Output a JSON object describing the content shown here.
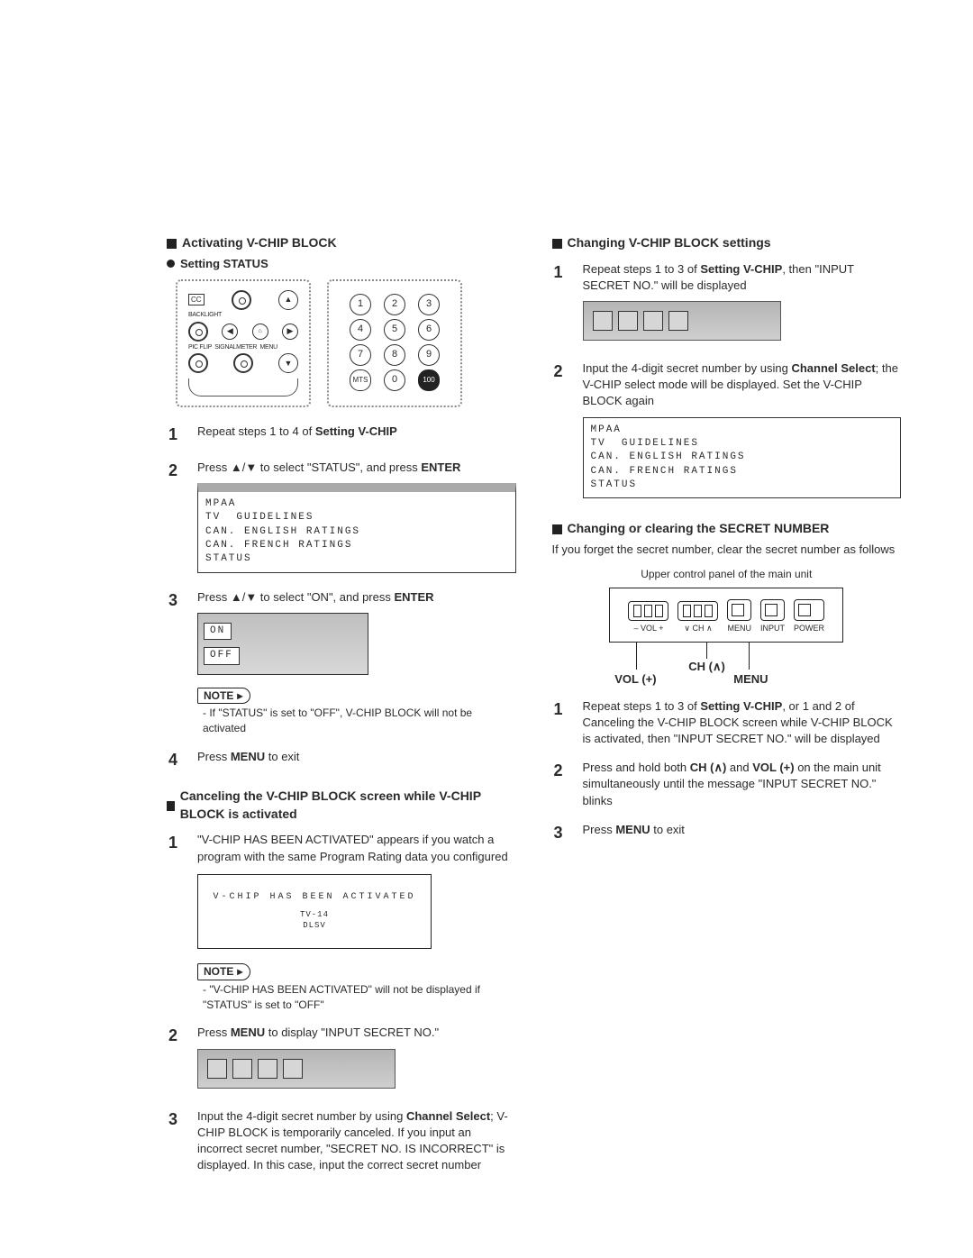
{
  "left": {
    "section_title": "Activating V-CHIP BLOCK",
    "sub_title": "Setting STATUS",
    "remote_labels": {
      "cc": "CC",
      "backlight": "BACKLIGHT",
      "picflip": "PIC FLIP",
      "signalmeter": "SIGNALMETER",
      "menu": "MENU"
    },
    "keypad": {
      "r1": [
        "1",
        "2",
        "3"
      ],
      "r2": [
        "4",
        "5",
        "6"
      ],
      "r3": [
        "7",
        "8",
        "9"
      ],
      "r4": [
        "MTS",
        "0",
        "100"
      ]
    },
    "step1": "Repeat steps 1 to 4 of Setting V-CHIP",
    "step2": "Press ▲/▼ to select \"STATUS\", and press ENTER",
    "osd1": "MPAA\nTV  GUIDELINES\nCAN. ENGLISH RATINGS\nCAN. FRENCH RATINGS\nSTATUS",
    "step3": "Press ▲/▼ to select \"ON\", and press ENTER",
    "onoff": {
      "on": "ON",
      "off": "OFF"
    },
    "note_label": "NOTE",
    "note1": "- If \"STATUS\" is set to \"OFF\", V-CHIP BLOCK will not be activated",
    "step4": "Press MENU to exit",
    "cancel_title": "Canceling the V-CHIP BLOCK screen while V-CHIP BLOCK is activated",
    "c_step1": "\"V-CHIP HAS BEEN ACTIVATED\" appears if you watch a program with the same Program Rating data you configured",
    "vchip_screen": "V-CHIP HAS BEEN ACTIVATED",
    "vchip_sub": "TV-14\nDLSV",
    "note2": "- \"V-CHIP HAS BEEN ACTIVATED\" will not be displayed if \"STATUS\" is set to \"OFF\"",
    "c_step2": "Press MENU to display \"INPUT SECRET NO.\"",
    "c_step3": "Input the 4-digit secret number by using Channel Select; V-CHIP BLOCK is temporarily canceled. If you input an incorrect secret number, \"SECRET NO. IS INCORRECT\" is displayed. In this case, input the correct secret number"
  },
  "right": {
    "change_title": "Changing V-CHIP BLOCK settings",
    "r_step1": "Repeat steps 1 to 3 of Setting V-CHIP, then \"INPUT SECRET NO.\" will be displayed",
    "r_step2": "Input the 4-digit secret number by using Channel Select; the V-CHIP select mode will be displayed. Set the V-CHIP BLOCK again",
    "osd2": "MPAA\nTV  GUIDELINES\nCAN. ENGLISH RATINGS\nCAN. FRENCH RATINGS\nSTATUS",
    "clear_title": "Changing or clearing the SECRET NUMBER",
    "clear_intro": "If you forget the secret number, clear the secret number as follows",
    "panel_caption": "Upper control panel of the main unit",
    "panel": {
      "vol": "– VOL +",
      "ch": "∨ CH ∧",
      "menu": "MENU",
      "input": "INPUT",
      "power": "POWER",
      "lbl_vol": "VOL (+)",
      "lbl_ch": "CH (∧)",
      "lbl_menu": "MENU"
    },
    "s_step1": "Repeat steps 1 to 3 of Setting V-CHIP, or 1 and 2 of Canceling the V-CHIP BLOCK screen while V-CHIP BLOCK is activated, then \"INPUT SECRET NO.\" will be displayed",
    "s_step2": "Press and hold both CH (∧) and VOL (+) on the main unit simultaneously until the message \"INPUT SECRET NO.\" blinks",
    "s_step3": "Press MENU to exit"
  },
  "bold": {
    "setting_vchip": "Setting V-CHIP",
    "enter": "ENTER",
    "menu": "MENU",
    "channel_select": "Channel Select",
    "ch": "CH (∧)",
    "vol": "VOL (+)"
  }
}
